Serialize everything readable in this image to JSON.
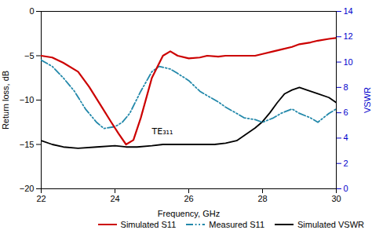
{
  "chart_data": {
    "type": "line",
    "xlabel": "Frequency, GHz",
    "ylabel": "Return loss, dB",
    "y2label": "VSWR",
    "xlim": [
      22.0,
      30.0
    ],
    "xticks": [
      22,
      24,
      26,
      28,
      30
    ],
    "ylim": [
      -20,
      0
    ],
    "yticks": [
      -20,
      -15,
      -10,
      -5,
      0
    ],
    "y2lim": [
      0,
      14
    ],
    "y2ticks": [
      0,
      2,
      4,
      6,
      8,
      10,
      12,
      14
    ],
    "grid": false,
    "legend": "lower right",
    "annotations": [
      {
        "text": "TE₃₁₁",
        "x": 25.0,
        "y": -13.5
      }
    ],
    "series": [
      {
        "name": "Simulated S11",
        "color": "#cc0000",
        "line_style": "solid",
        "x": [
          22.0,
          22.3,
          22.6,
          23.0,
          23.3,
          23.6,
          23.9,
          24.1,
          24.3,
          24.5,
          24.7,
          25.0,
          25.3,
          25.5,
          25.7,
          26.0,
          26.3,
          26.5,
          26.8,
          27.0,
          27.3,
          27.5,
          27.8,
          28.0,
          28.3,
          28.5,
          28.8,
          29.0,
          29.3,
          29.5,
          29.8,
          30.0
        ],
        "values": [
          -5.0,
          -5.2,
          -5.8,
          -6.8,
          -8.5,
          -10.5,
          -12.5,
          -13.8,
          -15.0,
          -14.5,
          -12.0,
          -7.5,
          -5.0,
          -4.5,
          -5.0,
          -5.3,
          -5.2,
          -5.0,
          -5.1,
          -5.0,
          -5.0,
          -5.0,
          -5.0,
          -4.8,
          -4.5,
          -4.3,
          -4.0,
          -3.7,
          -3.5,
          -3.3,
          -3.1,
          -3.0
        ]
      },
      {
        "name": "Measured S11",
        "color": "#2288aa",
        "line_style": "dashdot",
        "x": [
          22.0,
          22.3,
          22.6,
          22.9,
          23.2,
          23.5,
          23.7,
          24.0,
          24.2,
          24.4,
          24.7,
          25.0,
          25.2,
          25.5,
          25.7,
          26.0,
          26.3,
          26.5,
          26.8,
          27.0,
          27.3,
          27.5,
          27.8,
          28.0,
          28.3,
          28.5,
          28.8,
          29.0,
          29.3,
          29.5,
          29.8,
          30.0
        ],
        "values": [
          -5.5,
          -6.2,
          -7.5,
          -9.0,
          -11.0,
          -12.5,
          -13.2,
          -13.0,
          -12.5,
          -11.5,
          -9.0,
          -6.8,
          -6.2,
          -6.5,
          -7.0,
          -7.8,
          -9.0,
          -9.5,
          -10.2,
          -10.8,
          -11.5,
          -12.0,
          -12.2,
          -12.5,
          -12.0,
          -11.5,
          -11.0,
          -11.5,
          -12.0,
          -12.5,
          -11.5,
          -11.0
        ]
      },
      {
        "name": "Simulated VSWR",
        "color": "#000000",
        "line_style": "solid",
        "axis": "y2",
        "x": [
          22.0,
          22.3,
          22.6,
          23.0,
          23.5,
          24.0,
          24.3,
          24.6,
          25.0,
          25.3,
          25.5,
          25.7,
          26.0,
          26.2,
          26.5,
          26.7,
          27.0,
          27.3,
          27.5,
          27.8,
          28.0,
          28.2,
          28.4,
          28.6,
          28.8,
          29.0,
          29.2,
          29.5,
          29.8,
          30.0
        ],
        "values": [
          3.8,
          3.5,
          3.3,
          3.2,
          3.3,
          3.4,
          3.3,
          3.3,
          3.4,
          3.5,
          3.5,
          3.5,
          3.5,
          3.5,
          3.5,
          3.5,
          3.6,
          3.8,
          4.2,
          4.8,
          5.3,
          6.0,
          6.8,
          7.5,
          7.8,
          8.0,
          7.8,
          7.5,
          7.2,
          6.8
        ]
      }
    ]
  }
}
